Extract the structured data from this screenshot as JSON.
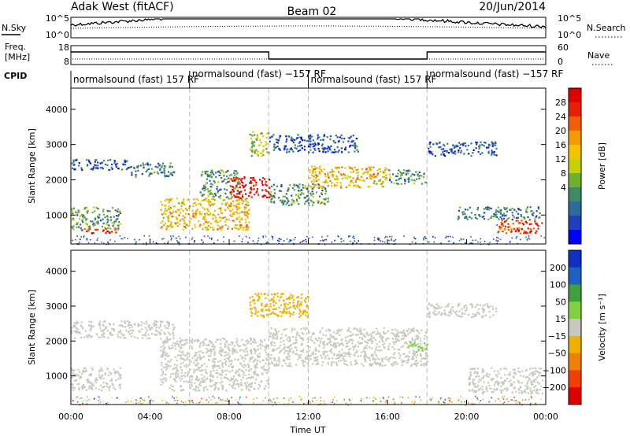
{
  "header": {
    "title": "Adak West (fitACF)",
    "beam": "Beam 02",
    "date": "20/Jun/2014"
  },
  "noise_panel": {
    "left_label": "N.Sky",
    "right_label": "N.Search",
    "left_ticks": [
      "10^5",
      "10^0"
    ],
    "right_ticks": [
      "10^5",
      "10^0"
    ]
  },
  "freq_panel": {
    "left_label_line1": "Freq.",
    "left_label_line2": "[MHz]",
    "right_label": "Nave",
    "left_ticks": [
      "18",
      "8"
    ],
    "right_ticks": [
      "60",
      "0"
    ],
    "freq_steps": [
      {
        "t_start": 0,
        "t_end": 10,
        "level": "high"
      },
      {
        "t_start": 10,
        "t_end": 18,
        "level": "low"
      },
      {
        "t_start": 18,
        "t_end": 24,
        "level": "high"
      }
    ]
  },
  "cpid_panel": {
    "label": "CPID",
    "segments": [
      {
        "t_start": 0,
        "text": "normalsound (fast) 157 RF",
        "row": 1
      },
      {
        "t_start": 6,
        "text": "normalsound (fast) −157 RF",
        "row": 0
      },
      {
        "t_start": 12,
        "text": "normalsound (fast) 157 RF",
        "row": 1
      },
      {
        "t_start": 18,
        "text": "normalsound (fast) −157 RF",
        "row": 0
      }
    ]
  },
  "x_axis": {
    "label": "Time UT",
    "ticks": [
      "00:00",
      "04:00",
      "08:00",
      "12:00",
      "16:00",
      "20:00",
      "00:00"
    ],
    "tick_hours": [
      0,
      4,
      8,
      12,
      16,
      20,
      24
    ],
    "range_hours": [
      0,
      24
    ]
  },
  "chart_data": [
    {
      "type": "heatmap",
      "name": "power",
      "ylabel": "Slant Range [km]",
      "ylim": [
        180,
        4600
      ],
      "y_ticks": [
        1000,
        2000,
        3000,
        4000
      ],
      "colorbar": {
        "label": "Power [dB]",
        "ticks": [
          "28",
          "24",
          "20",
          "16",
          "12",
          "8",
          "4"
        ],
        "range": [
          0,
          30
        ],
        "colors": [
          "#0000ff",
          "#1f3fbf",
          "#2d6b9a",
          "#3f8a63",
          "#6fb02e",
          "#c8d000",
          "#f5c400",
          "#f59a00",
          "#f06000",
          "#e82000",
          "#e00000"
        ]
      },
      "echo_regions": [
        {
          "t": [
            0.0,
            3.0
          ],
          "r": [
            2300,
            2600
          ],
          "value": 6
        },
        {
          "t": [
            3.0,
            5.2
          ],
          "r": [
            2100,
            2500
          ],
          "value": 8
        },
        {
          "t": [
            0.0,
            2.5
          ],
          "r": [
            600,
            1250
          ],
          "value": 10
        },
        {
          "t": [
            0.5,
            2.5
          ],
          "r": [
            500,
            650
          ],
          "value": 26
        },
        {
          "t": [
            4.5,
            9.0
          ],
          "r": [
            600,
            1500
          ],
          "value": 18
        },
        {
          "t": [
            6.5,
            8.5
          ],
          "r": [
            1500,
            2300
          ],
          "value": 10
        },
        {
          "t": [
            8.0,
            10.0
          ],
          "r": [
            1500,
            2100
          ],
          "value": 28
        },
        {
          "t": [
            9.0,
            10.0
          ],
          "r": [
            2700,
            3400
          ],
          "value": 14
        },
        {
          "t": [
            10.0,
            13.0
          ],
          "r": [
            1300,
            1900
          ],
          "value": 10
        },
        {
          "t": [
            12.0,
            16.0
          ],
          "r": [
            1800,
            2400
          ],
          "value": 18
        },
        {
          "t": [
            16.0,
            18.0
          ],
          "r": [
            1900,
            2300
          ],
          "value": 10
        },
        {
          "t": [
            10.0,
            14.5
          ],
          "r": [
            2800,
            3300
          ],
          "value": 6
        },
        {
          "t": [
            18.0,
            21.5
          ],
          "r": [
            2700,
            3100
          ],
          "value": 6
        },
        {
          "t": [
            19.5,
            23.8
          ],
          "r": [
            900,
            1250
          ],
          "value": 8
        },
        {
          "t": [
            21.5,
            23.8
          ],
          "r": [
            500,
            900
          ],
          "value": 26
        }
      ]
    },
    {
      "type": "heatmap",
      "name": "velocity",
      "ylabel": "Slant Range [km]",
      "ylim": [
        180,
        4600
      ],
      "y_ticks": [
        1000,
        2000,
        3000,
        4000
      ],
      "colorbar": {
        "label": "Velocity [m s⁻¹]",
        "ticks": [
          "200",
          "100",
          "50",
          "15",
          "−15",
          "−50",
          "−100",
          "−200"
        ],
        "range": [
          -250,
          250
        ],
        "colors": [
          "#e00000",
          "#f04000",
          "#f08000",
          "#f0b000",
          "#c8c8c0",
          "#80d040",
          "#40a040",
          "#2060c0",
          "#1030c0"
        ]
      },
      "echo_regions": [
        {
          "t": [
            0.0,
            5.2
          ],
          "r": [
            2100,
            2600
          ],
          "value": 0
        },
        {
          "t": [
            0.0,
            2.5
          ],
          "r": [
            600,
            1250
          ],
          "value": 0
        },
        {
          "t": [
            4.5,
            10.0
          ],
          "r": [
            600,
            2100
          ],
          "value": 0
        },
        {
          "t": [
            9.0,
            12.0
          ],
          "r": [
            2700,
            3400
          ],
          "value": -60
        },
        {
          "t": [
            10.0,
            18.0
          ],
          "r": [
            1300,
            2400
          ],
          "value": 0
        },
        {
          "t": [
            17.0,
            18.0
          ],
          "r": [
            1700,
            2000
          ],
          "value": 40
        },
        {
          "t": [
            18.0,
            21.5
          ],
          "r": [
            2700,
            3100
          ],
          "value": 0
        },
        {
          "t": [
            20.0,
            23.8
          ],
          "r": [
            500,
            1250
          ],
          "value": 0
        }
      ]
    }
  ]
}
